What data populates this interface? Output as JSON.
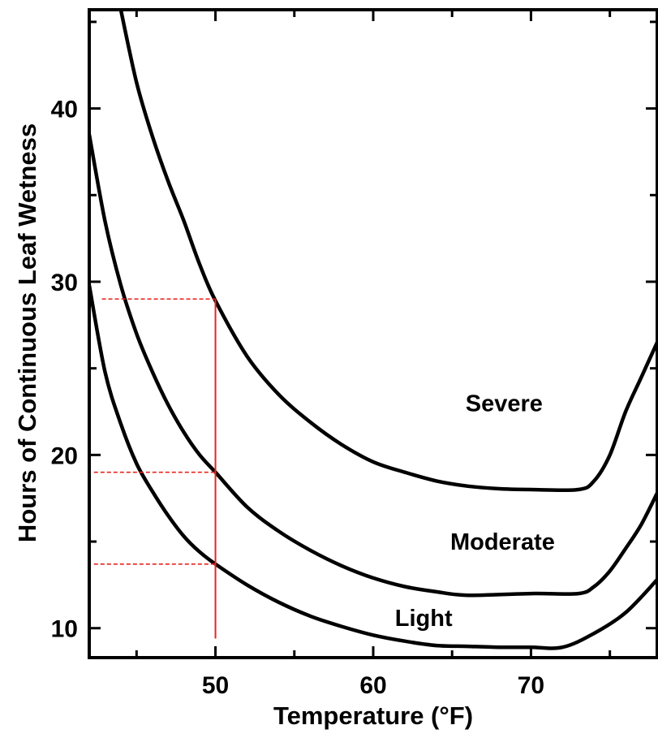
{
  "chart_data": {
    "type": "line",
    "xlabel": "Temperature (°F)",
    "ylabel": "Hours of Continuous Leaf Wetness",
    "xlim": [
      42,
      78
    ],
    "ylim": [
      8.3,
      45.7
    ],
    "xticks": [
      50,
      60,
      70
    ],
    "yticks": [
      10,
      20,
      30,
      40
    ],
    "xtick_labels": [
      "50",
      "60",
      "70"
    ],
    "ytick_labels": [
      "10",
      "20",
      "30",
      "40"
    ],
    "grid": false,
    "series": [
      {
        "name": "Severe",
        "x": [
          44,
          45,
          46,
          47,
          48,
          49,
          50,
          52,
          54,
          56,
          58,
          60,
          62,
          64,
          66,
          68,
          70,
          73,
          74,
          75,
          76,
          77,
          78
        ],
        "y": [
          45.7,
          41.5,
          38.4,
          35.8,
          33.5,
          31.0,
          28.9,
          25.7,
          23.5,
          21.9,
          20.6,
          19.6,
          19.0,
          18.5,
          18.2,
          18.05,
          18.0,
          18.0,
          18.5,
          20.0,
          22.5,
          24.5,
          26.5
        ]
      },
      {
        "name": "Moderate",
        "x": [
          42,
          43,
          44,
          45,
          46,
          47,
          48,
          49,
          50,
          52,
          54,
          56,
          58,
          60,
          62,
          64,
          66,
          70,
          73,
          74,
          75,
          76,
          77,
          78
        ],
        "y": [
          38.5,
          33.5,
          29.8,
          27.0,
          24.8,
          22.9,
          21.3,
          20.0,
          19.0,
          17.0,
          15.6,
          14.5,
          13.6,
          12.9,
          12.4,
          12.1,
          11.9,
          12.0,
          12.0,
          12.4,
          13.3,
          14.6,
          16.0,
          17.8
        ]
      },
      {
        "name": "Light",
        "x": [
          42,
          43,
          44,
          45,
          46,
          47,
          48,
          49,
          50,
          52,
          54,
          56,
          58,
          60,
          62,
          64,
          66,
          68,
          70,
          72,
          74,
          76,
          78
        ],
        "y": [
          29.8,
          24.8,
          21.8,
          19.5,
          17.9,
          16.5,
          15.3,
          14.4,
          13.7,
          12.5,
          11.5,
          10.7,
          10.1,
          9.6,
          9.25,
          9.0,
          8.95,
          8.9,
          8.9,
          8.9,
          9.7,
          10.9,
          12.8
        ]
      }
    ],
    "region_labels": [
      {
        "text": "Severe",
        "x": 68.3,
        "y": 23.0
      },
      {
        "text": "Moderate",
        "x": 68.2,
        "y": 15.0
      },
      {
        "text": "Light",
        "x": 63.2,
        "y": 10.6
      }
    ],
    "reference_lines": {
      "color": "#e8241f",
      "vertical": {
        "x": 50,
        "y_from": 9.4,
        "y_to": 29.0
      },
      "horizontal": [
        {
          "y": 29.0,
          "x_from": 42.8,
          "x_to": 50
        },
        {
          "y": 19.0,
          "x_from": 42.3,
          "x_to": 50
        },
        {
          "y": 13.7,
          "x_from": 42.3,
          "x_to": 50
        }
      ]
    }
  }
}
